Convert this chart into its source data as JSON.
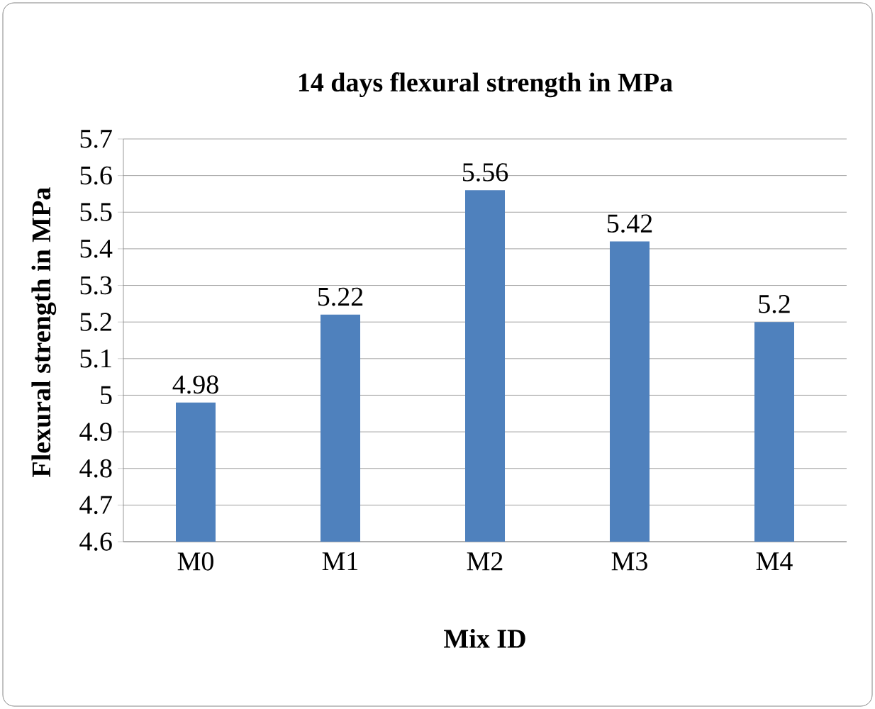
{
  "chart_data": {
    "type": "bar",
    "title": "14 days flexural strength in MPa",
    "xlabel": "Mix ID",
    "ylabel": "Flexural strength in MPa",
    "categories": [
      "M0",
      "M1",
      "M2",
      "M3",
      "M4"
    ],
    "values": [
      4.98,
      5.22,
      5.56,
      5.42,
      5.2
    ],
    "color": "#4f81bd",
    "ylim": [
      4.6,
      5.7
    ],
    "yticks": [
      4.6,
      4.7,
      4.8,
      4.9,
      5,
      5.1,
      5.2,
      5.3,
      5.4,
      5.5,
      5.6,
      5.7
    ],
    "grid": "y",
    "data_labels": true
  }
}
